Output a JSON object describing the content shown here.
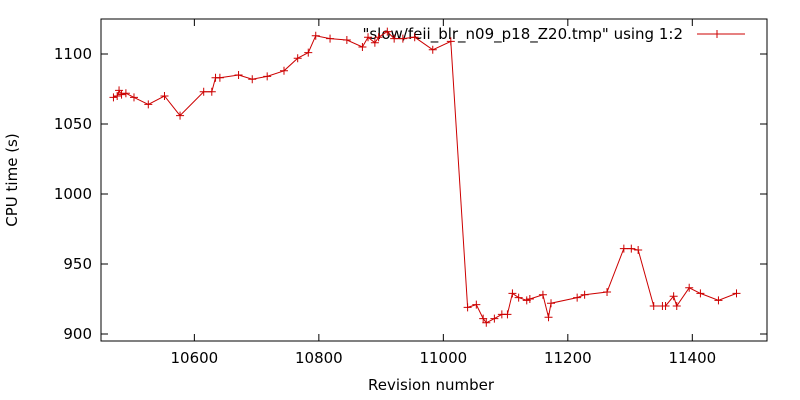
{
  "chart_data": {
    "type": "line",
    "title": "",
    "xlabel": "Revision number",
    "ylabel": "CPU time (s)",
    "xlim": [
      10450,
      11520
    ],
    "ylim": [
      895,
      1125
    ],
    "xticks": [
      10600,
      10800,
      11000,
      11200,
      11400
    ],
    "yticks": [
      900,
      950,
      1000,
      1050,
      1100
    ],
    "grid": false,
    "legend": "top-right",
    "series": [
      {
        "name": "\"slow/feii_blr_n09_p18_Z20.tmp\" using 1:2",
        "color": "#cc0000",
        "marker": "plus",
        "points": [
          [
            10470,
            1069
          ],
          [
            10476,
            1070
          ],
          [
            10479,
            1074
          ],
          [
            10483,
            1071
          ],
          [
            10490,
            1072
          ],
          [
            10503,
            1069
          ],
          [
            10526,
            1064
          ],
          [
            10552,
            1070
          ],
          [
            10577,
            1056
          ],
          [
            10615,
            1073
          ],
          [
            10628,
            1073
          ],
          [
            10634,
            1083
          ],
          [
            10641,
            1083
          ],
          [
            10671,
            1085
          ],
          [
            10693,
            1082
          ],
          [
            10717,
            1084
          ],
          [
            10744,
            1088
          ],
          [
            10766,
            1097
          ],
          [
            10783,
            1101
          ],
          [
            10795,
            1113
          ],
          [
            10818,
            1111
          ],
          [
            10845,
            1110
          ],
          [
            10870,
            1105
          ],
          [
            10879,
            1112
          ],
          [
            10890,
            1108
          ],
          [
            10896,
            1112
          ],
          [
            10910,
            1116
          ],
          [
            10921,
            1111
          ],
          [
            10935,
            1111
          ],
          [
            10954,
            1112
          ],
          [
            10983,
            1103
          ],
          [
            11012,
            1109
          ],
          [
            11039,
            919
          ],
          [
            11053,
            921
          ],
          [
            11064,
            911
          ],
          [
            11069,
            908
          ],
          [
            11082,
            911
          ],
          [
            11094,
            914
          ],
          [
            11103,
            914
          ],
          [
            11111,
            929
          ],
          [
            11121,
            926
          ],
          [
            11134,
            924
          ],
          [
            11139,
            925
          ],
          [
            11160,
            928
          ],
          [
            11169,
            912
          ],
          [
            11173,
            922
          ],
          [
            11215,
            926
          ],
          [
            11227,
            928
          ],
          [
            11263,
            930
          ],
          [
            11290,
            961
          ],
          [
            11302,
            961
          ],
          [
            11313,
            960
          ],
          [
            11338,
            920
          ],
          [
            11352,
            920
          ],
          [
            11357,
            920
          ],
          [
            11370,
            927
          ],
          [
            11375,
            920
          ],
          [
            11395,
            933
          ],
          [
            11413,
            929
          ],
          [
            11442,
            924
          ],
          [
            11471,
            929
          ]
        ]
      }
    ]
  }
}
